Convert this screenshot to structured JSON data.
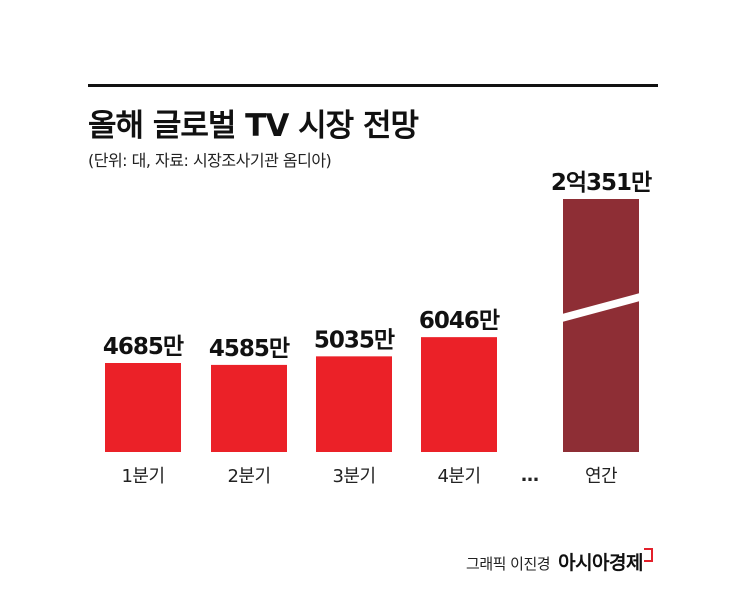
{
  "header": {
    "title": "올해 글로벌 TV 시장 전망",
    "subtitle": "(단위: 대, 자료: 시장조사기관 옴디아)"
  },
  "credit": {
    "text": "그래픽 이진경",
    "logo": "아시아경제"
  },
  "colors": {
    "quarter_bar": "#eb2128",
    "annual_bar": "#8e2e35",
    "rule": "#111111"
  },
  "chart_data": {
    "type": "bar",
    "title": "올해 글로벌 TV 시장 전망",
    "subtitle": "(단위: 대, 자료: 시장조사기관 옴디아)",
    "categories": [
      "1분기",
      "2분기",
      "3분기",
      "4분기",
      "연간"
    ],
    "values": [
      46850000,
      45850000,
      50350000,
      60460000,
      203510000
    ],
    "data_labels": [
      "4685만",
      "4585만",
      "5035만",
      "6046만",
      "2억351만"
    ],
    "ellipsis": "…",
    "axis_break_on": "연간",
    "grid": false,
    "legend": "none"
  }
}
